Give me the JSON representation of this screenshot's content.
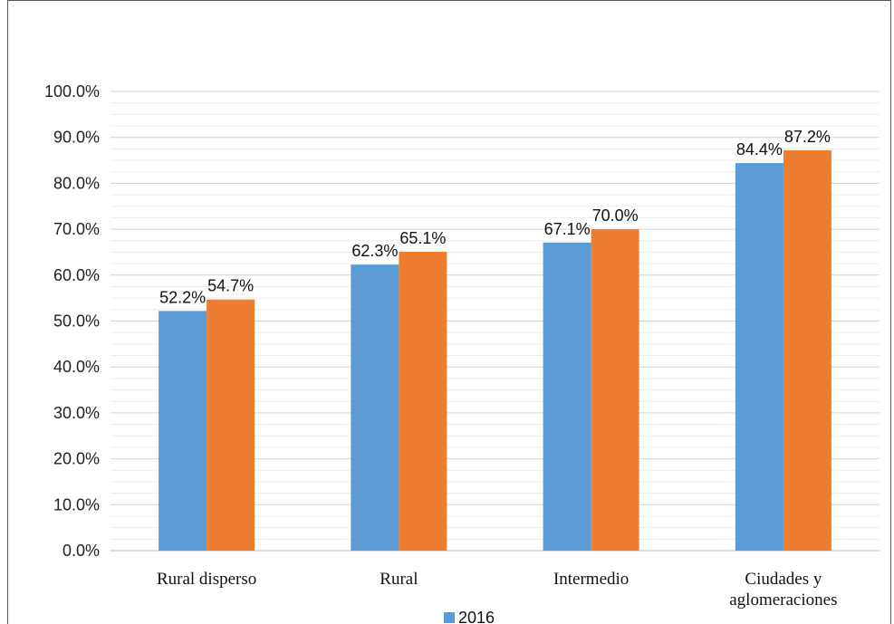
{
  "chart_data": {
    "type": "bar",
    "categories": [
      "Rural disperso",
      "Rural",
      "Intermedio",
      "Ciudades y aglomeraciones"
    ],
    "series": [
      {
        "name": "2016",
        "values": [
          52.2,
          62.3,
          67.1,
          84.4
        ],
        "color": "#5B9BD5"
      },
      {
        "name": "",
        "values": [
          54.7,
          65.1,
          70.0,
          87.2
        ],
        "color": "#ED7D31"
      }
    ],
    "data_labels": [
      [
        "52.2%",
        "62.3%",
        "67.1%",
        "84.4%"
      ],
      [
        "54.7%",
        "65.1%",
        "70.0%",
        "87.2%"
      ]
    ],
    "y_ticks": [
      "0.0%",
      "10.0%",
      "20.0%",
      "30.0%",
      "40.0%",
      "50.0%",
      "60.0%",
      "70.0%",
      "80.0%",
      "90.0%",
      "100.0%"
    ],
    "ylim": [
      0,
      100
    ],
    "grid": true,
    "minor_grid": true,
    "legend": {
      "position": "bottom",
      "entries": [
        "2016"
      ]
    },
    "title": "",
    "xlabel": "",
    "ylabel": ""
  }
}
